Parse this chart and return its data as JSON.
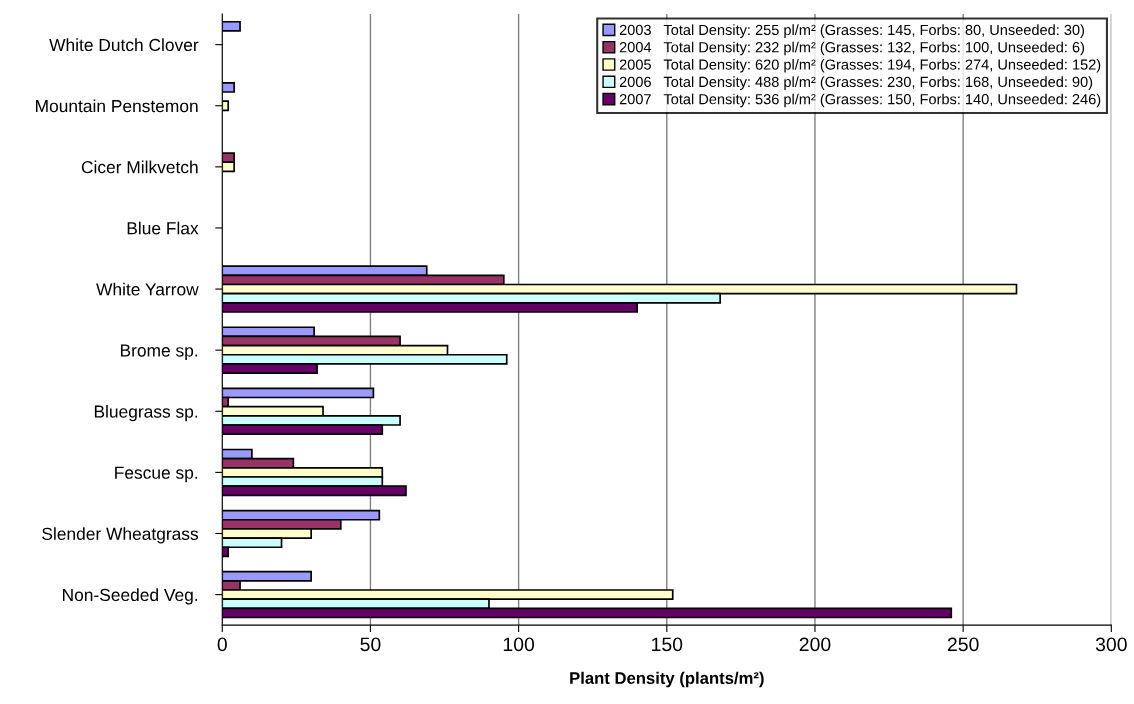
{
  "chart_data": {
    "type": "bar",
    "orientation": "horizontal",
    "xlabel": "Plant Density (plants/m²)",
    "categories": [
      "White Dutch Clover",
      "Mountain Penstemon",
      "Cicer Milkvetch",
      "Blue Flax",
      "White Yarrow",
      "Brome sp.",
      "Bluegrass sp.",
      "Fescue sp.",
      "Slender Wheatgrass",
      "Non-Seeded Veg."
    ],
    "series": [
      {
        "name": "2003   Total Density: 255 pl/m² (Grasses: 145, Forbs: 80, Unseeded: 30)",
        "color": "#9999ff",
        "values": [
          6,
          4,
          null,
          null,
          69,
          31,
          51,
          10,
          53,
          30
        ]
      },
      {
        "name": "2004   Total Density: 232 pl/m² (Grasses: 132, Forbs: 100, Unseeded: 6)",
        "color": "#993366",
        "values": [
          null,
          null,
          4,
          null,
          95,
          60,
          2,
          24,
          40,
          6
        ]
      },
      {
        "name": "2005   Total Density: 620 pl/m² (Grasses: 194, Forbs: 274, Unseeded: 152)",
        "color": "#ffffcc",
        "values": [
          null,
          2,
          4,
          null,
          268,
          76,
          34,
          54,
          30,
          152
        ]
      },
      {
        "name": "2006   Total Density: 488 pl/m² (Grasses: 230, Forbs: 168, Unseeded: 90)",
        "color": "#ccffff",
        "values": [
          null,
          null,
          null,
          null,
          168,
          96,
          60,
          54,
          20,
          90
        ]
      },
      {
        "name": "2007   Total Density: 536 pl/m² (Grasses: 150, Forbs: 140, Unseeded: 246)",
        "color": "#660066",
        "values": [
          null,
          null,
          null,
          null,
          140,
          32,
          54,
          62,
          2,
          246
        ]
      }
    ],
    "xlim": [
      0,
      300
    ],
    "xticks": [
      0,
      50,
      100,
      150,
      200,
      250,
      300
    ],
    "grid": "x",
    "legend": "top right"
  }
}
